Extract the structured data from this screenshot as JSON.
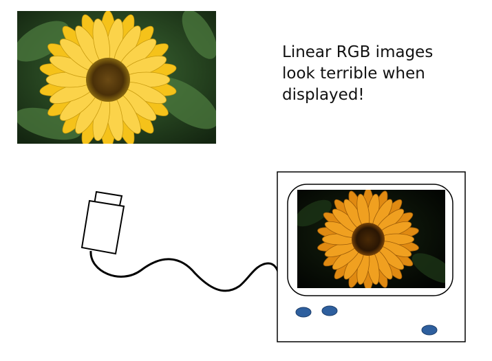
{
  "caption": {
    "lines": [
      "Linear RGB images",
      "look terrible when",
      "displayed!"
    ]
  },
  "icons": {
    "top_photo": "sunflower-photo",
    "usb_plug": "usb-plug-icon",
    "cable": "cable",
    "monitor": "monitor",
    "screen_photo": "dark-sunflower-photo",
    "buttons": "monitor-button"
  },
  "colors": {
    "petal_bright": "#f5c21a",
    "petal_dark": "#e08a12",
    "leaf": "#2c4a2a",
    "button": "#2e5f9e"
  }
}
